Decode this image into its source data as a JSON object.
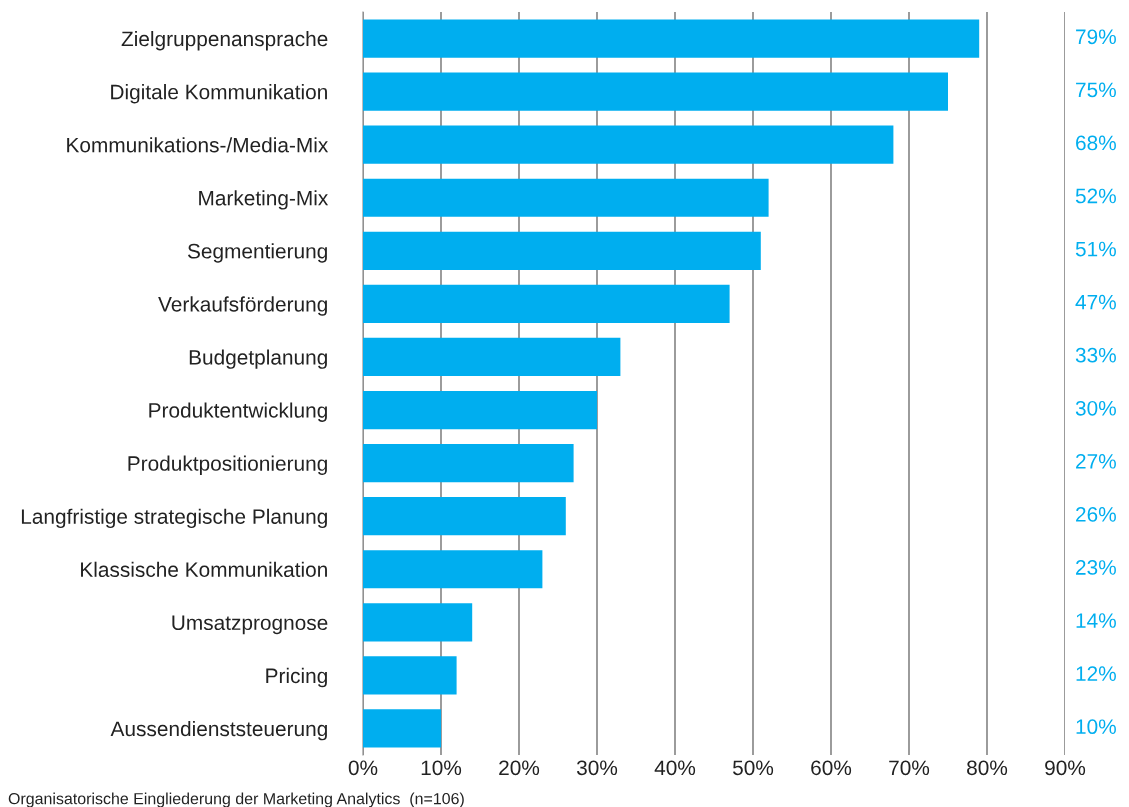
{
  "chart_data": {
    "type": "bar",
    "orientation": "horizontal",
    "categories": [
      "Zielgruppenansprache",
      "Digitale Kommunikation",
      "Kommunikations-/Media-Mix",
      "Marketing-Mix",
      "Segmentierung",
      "Verkaufsförderung",
      "Budgetplanung",
      "Produktentwicklung",
      "Produktpositionierung",
      "Langfristige strategische Planung",
      "Klassische Kommunikation",
      "Umsatzprognose",
      "Pricing",
      "Aussendienststeuerung"
    ],
    "values": [
      79,
      75,
      68,
      52,
      51,
      47,
      33,
      30,
      27,
      26,
      23,
      14,
      12,
      10
    ],
    "value_labels": [
      "79%",
      "75%",
      "68%",
      "52%",
      "51%",
      "47%",
      "33%",
      "30%",
      "27%",
      "26%",
      "23%",
      "14%",
      "12%",
      "10%"
    ],
    "color": "#00aeef",
    "xlim": [
      0,
      90
    ],
    "xticks": [
      {
        "value": 0,
        "label": "0%"
      },
      {
        "value": 10,
        "label": "10%"
      },
      {
        "value": 20,
        "label": "20%"
      },
      {
        "value": 30,
        "label": "30%"
      },
      {
        "value": 40,
        "label": "40%"
      },
      {
        "value": 50,
        "label": "50%"
      },
      {
        "value": 60,
        "label": "60%"
      },
      {
        "value": 70,
        "label": "70%"
      },
      {
        "value": 80,
        "label": "80%"
      },
      {
        "value": 90,
        "label": "90%"
      }
    ],
    "grid": "x",
    "annotations": [
      "Organisatorische Eingliederung der Marketing Analytics  (n=106)"
    ]
  }
}
